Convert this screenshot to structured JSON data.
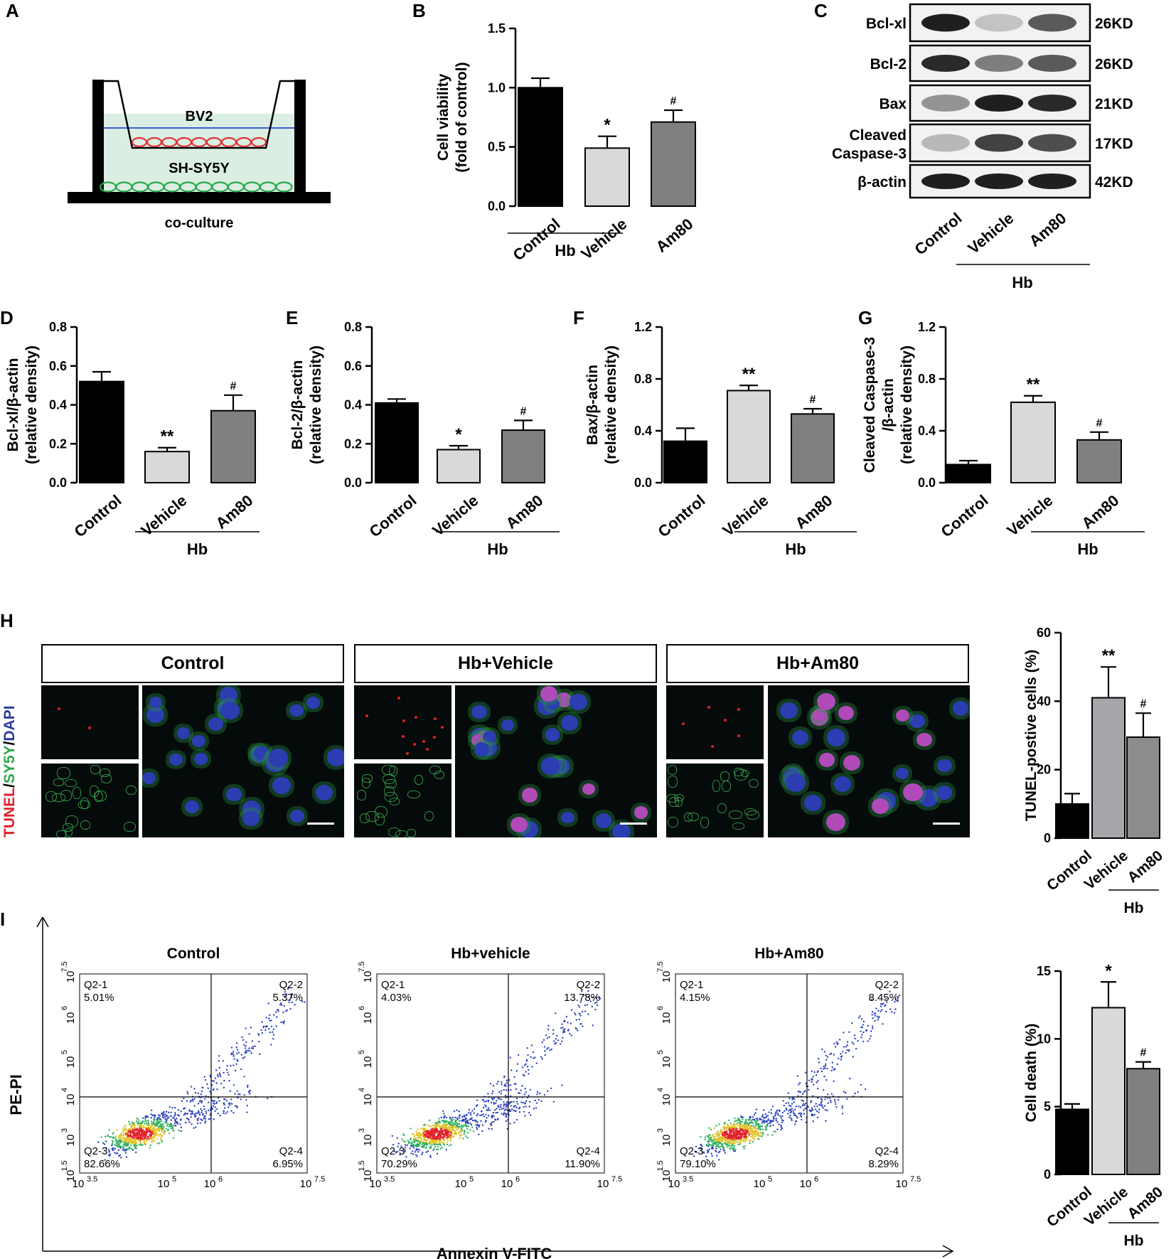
{
  "panel_labels": {
    "A": "A",
    "B": "B",
    "C": "C",
    "D": "D",
    "E": "E",
    "F": "F",
    "G": "G",
    "H": "H",
    "I": "I"
  },
  "panel_a": {
    "upper_cells": "BV2",
    "lower_cells": "SH-SY5Y",
    "caption": "co-culture",
    "colors": {
      "bv2": "#e0303a",
      "sy5y": "#27a84a",
      "medium": "#dbeee3",
      "membrane": "#3b5fd0"
    }
  },
  "groups": {
    "control": "Control",
    "vehicle": "Vehicle",
    "am80": "Am80",
    "hb": "Hb"
  },
  "colors": {
    "control": "#000000",
    "vehicle": "#d9d9d9",
    "am80": "#808080",
    "vehicle_h": "#a6a6ab",
    "am80_h": "#8c8c8c"
  },
  "western": {
    "bands": [
      {
        "label": "Bcl-xl",
        "size": "26KD",
        "intensity": [
          0.95,
          0.25,
          0.7
        ]
      },
      {
        "label": "Bcl-2",
        "size": "26KD",
        "intensity": [
          0.9,
          0.55,
          0.7
        ]
      },
      {
        "label": "Bax",
        "size": "21KD",
        "intensity": [
          0.45,
          0.95,
          0.9
        ]
      },
      {
        "label": "Cleaved Caspase-3",
        "size": "17KD",
        "intensity": [
          0.3,
          0.8,
          0.75
        ]
      },
      {
        "label": "β-actin",
        "size": "42KD",
        "intensity": [
          0.95,
          0.95,
          0.95
        ]
      }
    ]
  },
  "panel_h": {
    "titles": [
      "Control",
      "Hb+Vehicle",
      "Hb+Am80"
    ],
    "stain_label": {
      "tunel": "TUNEL",
      "sep1": "/",
      "sy5y": "SY5Y",
      "sep2": "/",
      "dapi": "DAPI"
    },
    "stain_colors": {
      "tunel": "#e0202a",
      "sy5y": "#2ea64a",
      "dapi": "#2a3aa0"
    }
  },
  "panel_i": {
    "titles": [
      "Control",
      "Hb+vehicle",
      "Hb+Am80"
    ],
    "xlabel": "Annexin V-FITC",
    "ylabel": "PE-PI",
    "x_ticks": [
      {
        "base": "10",
        "exp": "3.5"
      },
      {
        "base": "10",
        "exp": "5"
      },
      {
        "base": "10",
        "exp": "6"
      },
      {
        "base": "10",
        "exp": "7.5"
      }
    ],
    "y_ticks": [
      {
        "base": "10",
        "exp": "1.5"
      },
      {
        "base": "10",
        "exp": "3"
      },
      {
        "base": "10",
        "exp": "4"
      },
      {
        "base": "10",
        "exp": "5"
      },
      {
        "base": "10",
        "exp": "6"
      },
      {
        "base": "10",
        "exp": "7.5"
      }
    ],
    "quadrants": [
      {
        "q1": "Q2-1",
        "q1v": "5.01%",
        "q2": "Q2-2",
        "q2v": "5.37%",
        "q3": "Q2-3",
        "q3v": "82.66%",
        "q4": "Q2-4",
        "q4v": "6.95%"
      },
      {
        "q1": "Q2-1",
        "q1v": "4.03%",
        "q2": "Q2-2",
        "q2v": "13.78%",
        "q3": "Q2-3",
        "q3v": "70.29%",
        "q4": "Q2-4",
        "q4v": "11.90%"
      },
      {
        "q1": "Q2-1",
        "q1v": "4.15%",
        "q2": "Q2-2",
        "q2v": "8.45%",
        "q3": "Q2-3",
        "q3v": "79.10%",
        "q4": "Q2-4",
        "q4v": "8.29%"
      }
    ]
  },
  "chart_data": [
    {
      "id": "B",
      "type": "bar",
      "categories": [
        "Control",
        "Vehicle",
        "Am80"
      ],
      "group_label": "Hb",
      "ylabel": [
        "Cell viability",
        "(fold of control)"
      ],
      "ylim": [
        0,
        1.5
      ],
      "yticks": [
        "0.0",
        "0.5",
        "1.0",
        "1.5"
      ],
      "ytick_values": [
        0,
        0.5,
        1.0,
        1.5
      ],
      "values": [
        1.0,
        0.49,
        0.71
      ],
      "errors": [
        0.08,
        0.1,
        0.1
      ],
      "sig": [
        "",
        "*",
        "#"
      ],
      "style": "bc"
    },
    {
      "id": "D",
      "type": "bar",
      "categories": [
        "Control",
        "Vehicle",
        "Am80"
      ],
      "group_label": "Hb",
      "ylabel": [
        "Bcl-xl/β-actin",
        "(relative density)"
      ],
      "ylim": [
        0,
        0.8
      ],
      "yticks": [
        "0.0",
        "0.2",
        "0.4",
        "0.6",
        "0.8"
      ],
      "ytick_values": [
        0,
        0.2,
        0.4,
        0.6,
        0.8
      ],
      "values": [
        0.52,
        0.16,
        0.37
      ],
      "errors": [
        0.05,
        0.02,
        0.08
      ],
      "sig": [
        "",
        "**",
        "#"
      ],
      "style": "bc"
    },
    {
      "id": "E",
      "type": "bar",
      "categories": [
        "Control",
        "Vehicle",
        "Am80"
      ],
      "group_label": "Hb",
      "ylabel": [
        "Bcl-2/β-actin",
        "(relative density)"
      ],
      "ylim": [
        0,
        0.8
      ],
      "yticks": [
        "0.0",
        "0.2",
        "0.4",
        "0.6",
        "0.8"
      ],
      "ytick_values": [
        0,
        0.2,
        0.4,
        0.6,
        0.8
      ],
      "values": [
        0.41,
        0.17,
        0.27
      ],
      "errors": [
        0.02,
        0.02,
        0.05
      ],
      "sig": [
        "",
        "*",
        "#"
      ],
      "style": "bc"
    },
    {
      "id": "F",
      "type": "bar",
      "categories": [
        "Control",
        "Vehicle",
        "Am80"
      ],
      "group_label": "Hb",
      "ylabel": [
        "Bax/β-actin",
        "(relative density)"
      ],
      "ylim": [
        0,
        1.2
      ],
      "yticks": [
        "0.0",
        "0.4",
        "0.8",
        "1.2"
      ],
      "ytick_values": [
        0,
        0.4,
        0.8,
        1.2
      ],
      "values": [
        0.32,
        0.71,
        0.53
      ],
      "errors": [
        0.1,
        0.04,
        0.04
      ],
      "sig": [
        "",
        "**",
        "#"
      ],
      "style": "bc"
    },
    {
      "id": "G",
      "type": "bar",
      "categories": [
        "Control",
        "Vehicle",
        "Am80"
      ],
      "group_label": "Hb",
      "ylabel": [
        "Cleaved Caspase-3",
        "/β-actin",
        "(relative density)"
      ],
      "ylim": [
        0,
        1.2
      ],
      "yticks": [
        "0.0",
        "0.4",
        "0.8",
        "1.2"
      ],
      "ytick_values": [
        0,
        0.4,
        0.8,
        1.2
      ],
      "values": [
        0.14,
        0.62,
        0.33
      ],
      "errors": [
        0.03,
        0.05,
        0.06
      ],
      "sig": [
        "",
        "**",
        "#"
      ],
      "style": "bc"
    },
    {
      "id": "H",
      "type": "bar",
      "categories": [
        "Control",
        "Vehicle",
        "Am80"
      ],
      "group_label": "Hb",
      "ylabel": [
        "TUNEL-postive cells (%)"
      ],
      "ylim": [
        0,
        60
      ],
      "yticks": [
        "0",
        "20",
        "40",
        "60"
      ],
      "ytick_values": [
        0,
        20,
        40,
        60
      ],
      "values": [
        10,
        41,
        29.5
      ],
      "errors": [
        3,
        9,
        7
      ],
      "sig": [
        "",
        "**",
        "#"
      ],
      "style": "h"
    },
    {
      "id": "I",
      "type": "bar",
      "categories": [
        "Control",
        "Vehicle",
        "Am80"
      ],
      "group_label": "Hb",
      "ylabel": [
        "Cell death (%)"
      ],
      "ylim": [
        0,
        15
      ],
      "yticks": [
        "0",
        "5",
        "10",
        "15"
      ],
      "ytick_values": [
        0,
        5,
        10,
        15
      ],
      "values": [
        4.8,
        12.3,
        7.8
      ],
      "errors": [
        0.4,
        1.9,
        0.5
      ],
      "sig": [
        "",
        "*",
        "#"
      ],
      "style": "bc"
    }
  ]
}
